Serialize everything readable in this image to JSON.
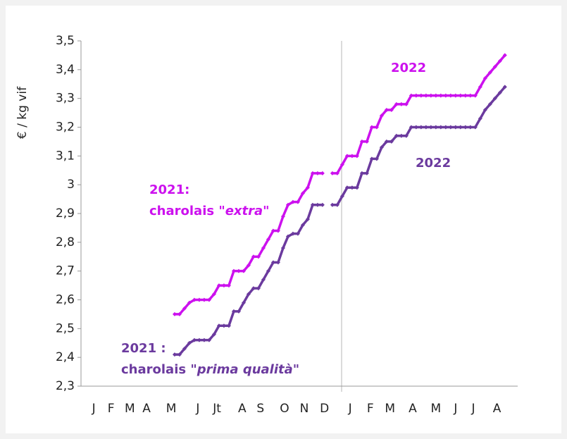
{
  "chart_data": {
    "type": "line",
    "y_label": "€ / kg vif",
    "ylim": [
      2.3,
      3.5
    ],
    "yticks": [
      {
        "value": 2.3,
        "label": "2,3"
      },
      {
        "value": 2.4,
        "label": "2,4"
      },
      {
        "value": 2.5,
        "label": "2,5"
      },
      {
        "value": 2.6,
        "label": "2,6"
      },
      {
        "value": 2.7,
        "label": "2,7"
      },
      {
        "value": 2.8,
        "label": "2,8"
      },
      {
        "value": 2.9,
        "label": "2,9"
      },
      3,
      {
        "value": 3.1,
        "label": "3,1"
      },
      {
        "value": 3.2,
        "label": "3,2"
      },
      {
        "value": 3.3,
        "label": "3,3"
      },
      {
        "value": 3.4,
        "label": "3,4"
      },
      {
        "value": 3.5,
        "label": "3,5"
      }
    ],
    "xlim": [
      0,
      88.6
    ],
    "xticks": [
      {
        "value": 2.6,
        "label": "J"
      },
      {
        "value": 6.1,
        "label": "F"
      },
      {
        "value": 9.9,
        "label": "M"
      },
      {
        "value": 13.3,
        "label": "A"
      },
      {
        "value": 18.3,
        "label": "M"
      },
      {
        "value": 23.7,
        "label": "J"
      },
      {
        "value": 27.6,
        "label": "Jt"
      },
      {
        "value": 32.7,
        "label": "A"
      },
      {
        "value": 36.4,
        "label": "S"
      },
      {
        "value": 41.3,
        "label": "O"
      },
      {
        "value": 45.3,
        "label": "N"
      },
      {
        "value": 49.4,
        "label": "D"
      },
      {
        "value": 54.6,
        "label": "J"
      },
      {
        "value": 58.7,
        "label": "F"
      },
      {
        "value": 62.7,
        "label": "M"
      },
      {
        "value": 67.3,
        "label": "A"
      },
      {
        "value": 72,
        "label": "M"
      },
      {
        "value": 76,
        "label": "J"
      },
      {
        "value": 79.6,
        "label": "J"
      },
      {
        "value": 84.4,
        "label": "A"
      }
    ],
    "series": [
      {
        "color": "#cc11ee",
        "x": [
          19,
          20,
          21,
          22,
          23,
          24,
          25,
          26,
          27,
          28,
          29,
          30,
          31,
          32,
          33,
          34,
          35,
          36,
          37,
          38,
          39,
          40,
          41,
          42,
          43,
          44,
          45,
          46,
          47,
          48,
          49
        ],
        "values": [
          2.55,
          2.55,
          2.57,
          2.59,
          2.6,
          2.6,
          2.6,
          2.6,
          2.62,
          2.65,
          2.65,
          2.65,
          2.7,
          2.7,
          2.7,
          2.72,
          2.75,
          2.75,
          2.78,
          2.81,
          2.84,
          2.84,
          2.89,
          2.93,
          2.94,
          2.94,
          2.97,
          2.99,
          3.04,
          3.04,
          3.04
        ]
      },
      {
        "color": "#6b3a9e",
        "x": [
          19,
          20,
          21,
          22,
          23,
          24,
          25,
          26,
          27,
          28,
          29,
          30,
          31,
          32,
          33,
          34,
          35,
          36,
          37,
          38,
          39,
          40,
          41,
          42,
          43,
          44,
          45,
          46,
          47,
          48,
          49
        ],
        "values": [
          2.41,
          2.41,
          2.43,
          2.45,
          2.46,
          2.46,
          2.46,
          2.46,
          2.48,
          2.51,
          2.51,
          2.51,
          2.56,
          2.56,
          2.59,
          2.62,
          2.64,
          2.64,
          2.67,
          2.7,
          2.73,
          2.73,
          2.78,
          2.82,
          2.83,
          2.83,
          2.86,
          2.88,
          2.93,
          2.93,
          2.93
        ]
      },
      {
        "color": "#cc11ee",
        "x": [
          51,
          52,
          53,
          54,
          55,
          56,
          57,
          58,
          59,
          60,
          61,
          62,
          63,
          64,
          65,
          66,
          67,
          68,
          69,
          70,
          71,
          72,
          73,
          74,
          75,
          76,
          77,
          78,
          79,
          80,
          81,
          82,
          83,
          84,
          85,
          86
        ],
        "values": [
          3.04,
          3.04,
          3.07,
          3.1,
          3.1,
          3.1,
          3.15,
          3.15,
          3.2,
          3.2,
          3.24,
          3.26,
          3.26,
          3.28,
          3.28,
          3.28,
          3.31,
          3.31,
          3.31,
          3.31,
          3.31,
          3.31,
          3.31,
          3.31,
          3.31,
          3.31,
          3.31,
          3.31,
          3.31,
          3.31,
          3.34,
          3.37,
          3.39,
          3.41,
          3.43,
          3.45
        ]
      },
      {
        "color": "#6b3a9e",
        "x": [
          51,
          52,
          53,
          54,
          55,
          56,
          57,
          58,
          59,
          60,
          61,
          62,
          63,
          64,
          65,
          66,
          67,
          68,
          69,
          70,
          71,
          72,
          73,
          74,
          75,
          76,
          77,
          78,
          79,
          80,
          81,
          82,
          83,
          84,
          85,
          86
        ],
        "values": [
          2.93,
          2.93,
          2.96,
          2.99,
          2.99,
          2.99,
          3.04,
          3.04,
          3.09,
          3.09,
          3.13,
          3.15,
          3.15,
          3.17,
          3.17,
          3.17,
          3.2,
          3.2,
          3.2,
          3.2,
          3.2,
          3.2,
          3.2,
          3.2,
          3.2,
          3.2,
          3.2,
          3.2,
          3.2,
          3.2,
          3.23,
          3.26,
          3.28,
          3.3,
          3.32,
          3.34
        ]
      }
    ],
    "annotations": [
      {
        "color": "#cc11ee",
        "lines": [
          [
            "2021:"
          ],
          [
            "charolais \"",
            "extra",
            "\""
          ]
        ]
      },
      {
        "color": "#cc11ee",
        "lines": [
          [
            "2022"
          ]
        ]
      },
      {
        "color": "#6b3a9e",
        "lines": [
          [
            "2022"
          ]
        ]
      },
      {
        "color": "#6b3a9e",
        "lines": [
          [
            "2021 :"
          ],
          [
            "charolais \"",
            "prima qualità",
            "\""
          ]
        ]
      }
    ]
  }
}
